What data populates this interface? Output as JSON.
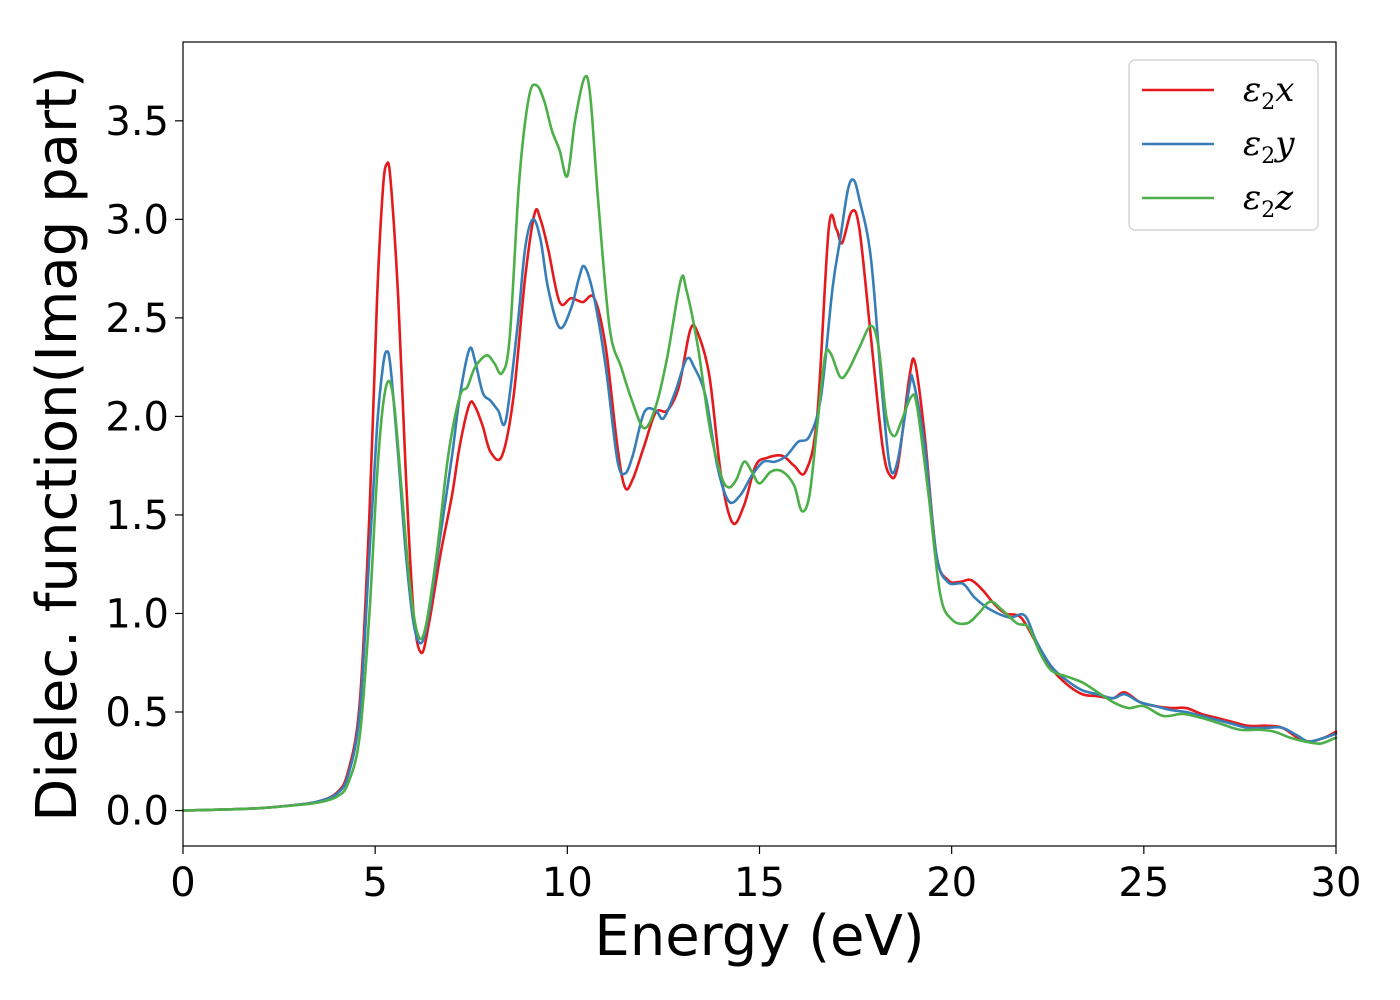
{
  "chart_data": {
    "type": "line",
    "title": "",
    "xlabel": "Energy (eV)",
    "ylabel": "Dielec. function(Imag part)",
    "xlim": [
      0,
      30
    ],
    "ylim": [
      -0.18,
      3.9
    ],
    "xticks": [
      0,
      5,
      10,
      15,
      20,
      25,
      30
    ],
    "xtick_labels": [
      "0",
      "5",
      "10",
      "15",
      "20",
      "25",
      "30"
    ],
    "yticks": [
      0.0,
      0.5,
      1.0,
      1.5,
      2.0,
      2.5,
      3.0,
      3.5
    ],
    "ytick_labels": [
      "0.0",
      "0.5",
      "1.0",
      "1.5",
      "2.0",
      "2.5",
      "3.0",
      "3.5"
    ],
    "grid": false,
    "legend_position": "top-right",
    "series": [
      {
        "name": "ε2x",
        "legend_main": "ε",
        "legend_sub": "2",
        "legend_tail": "x",
        "color": "#e41a1c",
        "points": [
          [
            0,
            0
          ],
          [
            1,
            0.005
          ],
          [
            2,
            0.012
          ],
          [
            3,
            0.03
          ],
          [
            3.5,
            0.045
          ],
          [
            4,
            0.09
          ],
          [
            4.3,
            0.2
          ],
          [
            4.6,
            0.55
          ],
          [
            4.85,
            1.5
          ],
          [
            5.05,
            2.6
          ],
          [
            5.2,
            3.15
          ],
          [
            5.3,
            3.28
          ],
          [
            5.4,
            3.2
          ],
          [
            5.6,
            2.6
          ],
          [
            5.8,
            1.7
          ],
          [
            6.0,
            1.0
          ],
          [
            6.2,
            0.8
          ],
          [
            6.4,
            0.95
          ],
          [
            6.7,
            1.3
          ],
          [
            7.0,
            1.6
          ],
          [
            7.2,
            1.85
          ],
          [
            7.45,
            2.06
          ],
          [
            7.6,
            2.05
          ],
          [
            7.8,
            1.95
          ],
          [
            8.0,
            1.82
          ],
          [
            8.3,
            1.8
          ],
          [
            8.6,
            2.1
          ],
          [
            8.9,
            2.7
          ],
          [
            9.15,
            3.03
          ],
          [
            9.3,
            3.0
          ],
          [
            9.5,
            2.85
          ],
          [
            9.8,
            2.58
          ],
          [
            10.1,
            2.6
          ],
          [
            10.4,
            2.58
          ],
          [
            10.7,
            2.6
          ],
          [
            11.0,
            2.35
          ],
          [
            11.3,
            1.85
          ],
          [
            11.5,
            1.64
          ],
          [
            11.7,
            1.68
          ],
          [
            12.0,
            1.85
          ],
          [
            12.3,
            2.02
          ],
          [
            12.6,
            2.03
          ],
          [
            12.9,
            2.15
          ],
          [
            13.2,
            2.44
          ],
          [
            13.4,
            2.42
          ],
          [
            13.7,
            2.2
          ],
          [
            14.0,
            1.7
          ],
          [
            14.3,
            1.46
          ],
          [
            14.6,
            1.55
          ],
          [
            14.9,
            1.75
          ],
          [
            15.2,
            1.79
          ],
          [
            15.6,
            1.8
          ],
          [
            15.9,
            1.75
          ],
          [
            16.2,
            1.72
          ],
          [
            16.5,
            2.0
          ],
          [
            16.8,
            2.95
          ],
          [
            17.0,
            2.95
          ],
          [
            17.15,
            2.88
          ],
          [
            17.4,
            3.04
          ],
          [
            17.6,
            2.95
          ],
          [
            17.9,
            2.4
          ],
          [
            18.2,
            1.85
          ],
          [
            18.4,
            1.7
          ],
          [
            18.6,
            1.75
          ],
          [
            18.9,
            2.2
          ],
          [
            19.05,
            2.27
          ],
          [
            19.3,
            1.9
          ],
          [
            19.6,
            1.3
          ],
          [
            19.9,
            1.17
          ],
          [
            20.2,
            1.16
          ],
          [
            20.5,
            1.17
          ],
          [
            20.8,
            1.12
          ],
          [
            21.1,
            1.05
          ],
          [
            21.4,
            1.0
          ],
          [
            21.8,
            0.98
          ],
          [
            22.2,
            0.85
          ],
          [
            22.6,
            0.72
          ],
          [
            23.0,
            0.64
          ],
          [
            23.4,
            0.59
          ],
          [
            23.8,
            0.58
          ],
          [
            24.2,
            0.57
          ],
          [
            24.5,
            0.6
          ],
          [
            24.9,
            0.55
          ],
          [
            25.3,
            0.53
          ],
          [
            25.7,
            0.52
          ],
          [
            26.1,
            0.52
          ],
          [
            26.5,
            0.49
          ],
          [
            26.9,
            0.47
          ],
          [
            27.3,
            0.45
          ],
          [
            27.7,
            0.43
          ],
          [
            28.2,
            0.43
          ],
          [
            28.6,
            0.42
          ],
          [
            29.0,
            0.37
          ],
          [
            29.3,
            0.35
          ],
          [
            29.7,
            0.37
          ],
          [
            30.0,
            0.4
          ]
        ]
      },
      {
        "name": "ε2y",
        "legend_main": "ε",
        "legend_sub": "2",
        "legend_tail": "y",
        "color": "#377eb8",
        "points": [
          [
            0,
            0
          ],
          [
            1,
            0.005
          ],
          [
            2,
            0.012
          ],
          [
            3,
            0.03
          ],
          [
            3.5,
            0.045
          ],
          [
            4,
            0.085
          ],
          [
            4.3,
            0.18
          ],
          [
            4.6,
            0.5
          ],
          [
            4.85,
            1.3
          ],
          [
            5.05,
            1.95
          ],
          [
            5.2,
            2.25
          ],
          [
            5.3,
            2.33
          ],
          [
            5.4,
            2.25
          ],
          [
            5.6,
            1.8
          ],
          [
            5.8,
            1.3
          ],
          [
            6.0,
            0.95
          ],
          [
            6.2,
            0.85
          ],
          [
            6.4,
            1.0
          ],
          [
            6.7,
            1.4
          ],
          [
            7.0,
            1.8
          ],
          [
            7.2,
            2.1
          ],
          [
            7.45,
            2.34
          ],
          [
            7.6,
            2.28
          ],
          [
            7.8,
            2.12
          ],
          [
            8.0,
            2.08
          ],
          [
            8.2,
            2.03
          ],
          [
            8.4,
            1.98
          ],
          [
            8.7,
            2.45
          ],
          [
            8.9,
            2.85
          ],
          [
            9.1,
            3.0
          ],
          [
            9.3,
            2.9
          ],
          [
            9.5,
            2.65
          ],
          [
            9.8,
            2.45
          ],
          [
            10.1,
            2.55
          ],
          [
            10.3,
            2.7
          ],
          [
            10.45,
            2.76
          ],
          [
            10.7,
            2.6
          ],
          [
            11.0,
            2.25
          ],
          [
            11.3,
            1.78
          ],
          [
            11.5,
            1.71
          ],
          [
            11.7,
            1.8
          ],
          [
            12.0,
            2.02
          ],
          [
            12.3,
            2.03
          ],
          [
            12.5,
            1.99
          ],
          [
            12.8,
            2.12
          ],
          [
            13.1,
            2.29
          ],
          [
            13.3,
            2.25
          ],
          [
            13.6,
            2.1
          ],
          [
            13.9,
            1.75
          ],
          [
            14.2,
            1.57
          ],
          [
            14.5,
            1.6
          ],
          [
            14.8,
            1.7
          ],
          [
            15.1,
            1.77
          ],
          [
            15.4,
            1.77
          ],
          [
            15.7,
            1.8
          ],
          [
            16.0,
            1.87
          ],
          [
            16.3,
            1.9
          ],
          [
            16.6,
            2.1
          ],
          [
            16.9,
            2.65
          ],
          [
            17.1,
            2.9
          ],
          [
            17.3,
            3.15
          ],
          [
            17.45,
            3.2
          ],
          [
            17.6,
            3.1
          ],
          [
            17.9,
            2.8
          ],
          [
            18.2,
            2.1
          ],
          [
            18.4,
            1.74
          ],
          [
            18.6,
            1.78
          ],
          [
            18.9,
            2.15
          ],
          [
            19.0,
            2.18
          ],
          [
            19.3,
            1.85
          ],
          [
            19.6,
            1.3
          ],
          [
            19.9,
            1.16
          ],
          [
            20.3,
            1.15
          ],
          [
            20.6,
            1.08
          ],
          [
            21.0,
            1.02
          ],
          [
            21.5,
            0.98
          ],
          [
            21.9,
            0.99
          ],
          [
            22.2,
            0.86
          ],
          [
            22.6,
            0.73
          ],
          [
            23.0,
            0.66
          ],
          [
            23.4,
            0.61
          ],
          [
            23.8,
            0.59
          ],
          [
            24.2,
            0.57
          ],
          [
            24.5,
            0.59
          ],
          [
            24.9,
            0.55
          ],
          [
            25.3,
            0.53
          ],
          [
            25.7,
            0.51
          ],
          [
            26.1,
            0.5
          ],
          [
            26.5,
            0.48
          ],
          [
            26.9,
            0.46
          ],
          [
            27.3,
            0.44
          ],
          [
            27.7,
            0.42
          ],
          [
            28.2,
            0.42
          ],
          [
            28.6,
            0.42
          ],
          [
            29.0,
            0.38
          ],
          [
            29.3,
            0.35
          ],
          [
            29.7,
            0.37
          ],
          [
            30.0,
            0.39
          ]
        ]
      },
      {
        "name": "ε2z",
        "legend_main": "ε",
        "legend_sub": "2",
        "legend_tail": "z",
        "color": "#4daf4a",
        "points": [
          [
            0,
            0
          ],
          [
            1,
            0.005
          ],
          [
            2,
            0.012
          ],
          [
            3,
            0.028
          ],
          [
            3.5,
            0.04
          ],
          [
            4,
            0.07
          ],
          [
            4.3,
            0.14
          ],
          [
            4.6,
            0.38
          ],
          [
            4.85,
            1.0
          ],
          [
            5.05,
            1.7
          ],
          [
            5.2,
            2.05
          ],
          [
            5.35,
            2.18
          ],
          [
            5.5,
            2.05
          ],
          [
            5.7,
            1.6
          ],
          [
            5.9,
            1.15
          ],
          [
            6.1,
            0.9
          ],
          [
            6.3,
            0.92
          ],
          [
            6.6,
            1.3
          ],
          [
            6.9,
            1.8
          ],
          [
            7.2,
            2.1
          ],
          [
            7.4,
            2.15
          ],
          [
            7.6,
            2.25
          ],
          [
            7.9,
            2.31
          ],
          [
            8.1,
            2.27
          ],
          [
            8.3,
            2.22
          ],
          [
            8.5,
            2.4
          ],
          [
            8.75,
            3.2
          ],
          [
            9.0,
            3.62
          ],
          [
            9.2,
            3.68
          ],
          [
            9.4,
            3.6
          ],
          [
            9.6,
            3.45
          ],
          [
            9.8,
            3.35
          ],
          [
            10.0,
            3.22
          ],
          [
            10.2,
            3.5
          ],
          [
            10.45,
            3.72
          ],
          [
            10.6,
            3.62
          ],
          [
            10.8,
            3.1
          ],
          [
            11.1,
            2.45
          ],
          [
            11.4,
            2.25
          ],
          [
            11.7,
            2.07
          ],
          [
            12.0,
            1.94
          ],
          [
            12.3,
            2.05
          ],
          [
            12.6,
            2.3
          ],
          [
            12.95,
            2.69
          ],
          [
            13.1,
            2.64
          ],
          [
            13.4,
            2.35
          ],
          [
            13.7,
            1.95
          ],
          [
            14.0,
            1.7
          ],
          [
            14.2,
            1.64
          ],
          [
            14.4,
            1.68
          ],
          [
            14.6,
            1.77
          ],
          [
            14.8,
            1.72
          ],
          [
            15.0,
            1.66
          ],
          [
            15.3,
            1.72
          ],
          [
            15.6,
            1.72
          ],
          [
            15.9,
            1.65
          ],
          [
            16.1,
            1.52
          ],
          [
            16.3,
            1.6
          ],
          [
            16.5,
            1.95
          ],
          [
            16.7,
            2.3
          ],
          [
            16.85,
            2.32
          ],
          [
            17.1,
            2.2
          ],
          [
            17.3,
            2.23
          ],
          [
            17.6,
            2.35
          ],
          [
            17.9,
            2.46
          ],
          [
            18.1,
            2.35
          ],
          [
            18.3,
            2.0
          ],
          [
            18.5,
            1.9
          ],
          [
            18.7,
            1.98
          ],
          [
            18.95,
            2.1
          ],
          [
            19.1,
            2.05
          ],
          [
            19.4,
            1.6
          ],
          [
            19.7,
            1.1
          ],
          [
            20.0,
            0.97
          ],
          [
            20.4,
            0.95
          ],
          [
            20.7,
            1.0
          ],
          [
            21.0,
            1.06
          ],
          [
            21.3,
            1.02
          ],
          [
            21.7,
            0.95
          ],
          [
            22.0,
            0.93
          ],
          [
            22.3,
            0.8
          ],
          [
            22.6,
            0.71
          ],
          [
            23.0,
            0.68
          ],
          [
            23.4,
            0.65
          ],
          [
            23.8,
            0.6
          ],
          [
            24.2,
            0.55
          ],
          [
            24.6,
            0.52
          ],
          [
            25.0,
            0.53
          ],
          [
            25.5,
            0.48
          ],
          [
            26.0,
            0.49
          ],
          [
            26.5,
            0.47
          ],
          [
            27.0,
            0.44
          ],
          [
            27.5,
            0.41
          ],
          [
            28.0,
            0.41
          ],
          [
            28.4,
            0.4
          ],
          [
            28.8,
            0.37
          ],
          [
            29.2,
            0.35
          ],
          [
            29.6,
            0.34
          ],
          [
            30.0,
            0.37
          ]
        ]
      }
    ]
  }
}
